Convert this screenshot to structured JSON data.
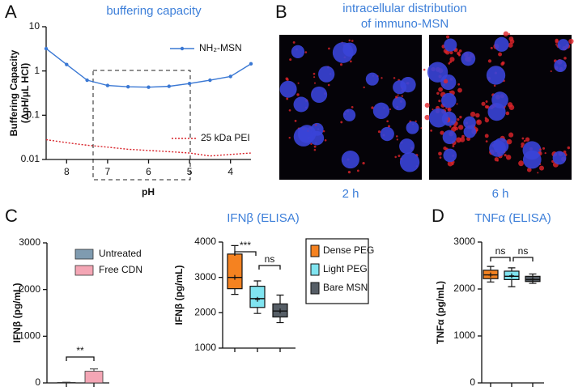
{
  "panel_letters": [
    "A",
    "B",
    "C",
    "D"
  ],
  "panel_b": {
    "title": [
      "intracellular distribution",
      "of immuno-MSN"
    ],
    "labels": [
      "2 h",
      "6 h"
    ]
  },
  "chart_data": [
    {
      "type": "line",
      "title": "buffering capacity",
      "xlabel": "pH",
      "ylabel": [
        "Buffering Capacity",
        "(ΔpH/μL HCl)"
      ],
      "x": [
        8.5,
        8,
        7.5,
        7,
        6.5,
        6,
        5.5,
        5,
        4.5,
        4,
        3.5
      ],
      "series": [
        {
          "name": "NH₂-MSN",
          "color": "#3a78d4",
          "line_style": "solid",
          "marker": "circle",
          "values": [
            3.2,
            1.4,
            0.62,
            0.47,
            0.44,
            0.43,
            0.45,
            0.52,
            0.62,
            0.75,
            1.45
          ]
        },
        {
          "name": "25 kDa PEI",
          "color": "#d8232a",
          "line_style": "dotted",
          "marker": "none",
          "values": [
            0.028,
            0.024,
            0.021,
            0.019,
            0.017,
            0.016,
            0.015,
            0.014,
            0.012,
            0.013,
            0.014
          ]
        }
      ],
      "xlim": [
        8.5,
        3.5
      ],
      "xticks": [
        8,
        7,
        6,
        5,
        4
      ],
      "ylim": [
        0.01,
        10
      ],
      "yticks": [
        10,
        1,
        0.1,
        0.01
      ],
      "log_y": true
    },
    {
      "type": "bar",
      "ylabel": "IFNβ (pg/mL)",
      "categories": [
        "Untreated",
        "Free CDN"
      ],
      "colors": [
        "#7f9bb0",
        "#f4a6b5"
      ],
      "values": [
        10,
        250
      ],
      "errors": [
        5,
        50
      ],
      "ylim": [
        0,
        3000
      ],
      "yticks": [
        0,
        1000,
        2000,
        3000
      ],
      "annotations": [
        "**"
      ]
    },
    {
      "type": "box",
      "title": "IFNβ (ELISA)",
      "ylabel": "IFNβ (pg/mL)",
      "boxes": [
        {
          "name": "Dense PEG",
          "color": "#f58220",
          "min": 2520,
          "q1": 2680,
          "median": 3000,
          "q3": 3660,
          "max": 3900,
          "mean": 3000
        },
        {
          "name": "Light PEG",
          "color": "#80e4f0",
          "min": 1980,
          "q1": 2150,
          "median": 2400,
          "q3": 2750,
          "max": 2900,
          "mean": 2380
        },
        {
          "name": "Bare MSN",
          "color": "#565e66",
          "min": 1720,
          "q1": 1880,
          "median": 2050,
          "q3": 2250,
          "max": 2500,
          "mean": 2050
        }
      ],
      "ylim": [
        1000,
        4000
      ],
      "yticks": [
        1000,
        2000,
        3000,
        4000
      ],
      "annotations": [
        "***",
        "ns"
      ]
    },
    {
      "type": "box",
      "title": "TNFα (ELISA)",
      "ylabel": "TNFα (pg/mL)",
      "boxes": [
        {
          "color": "#f58220",
          "min": 2150,
          "q1": 2220,
          "median": 2300,
          "q3": 2400,
          "max": 2480,
          "mean": 2300
        },
        {
          "color": "#80e4f0",
          "min": 2050,
          "q1": 2200,
          "median": 2270,
          "q3": 2380,
          "max": 2450,
          "mean": 2280
        },
        {
          "color": "#565e66",
          "min": 2120,
          "q1": 2160,
          "median": 2200,
          "q3": 2270,
          "max": 2320,
          "mean": 2200
        }
      ],
      "ylim": [
        0,
        3000
      ],
      "yticks": [
        0,
        1000,
        2000,
        3000
      ],
      "annotations": [
        "ns",
        "ns"
      ]
    }
  ]
}
